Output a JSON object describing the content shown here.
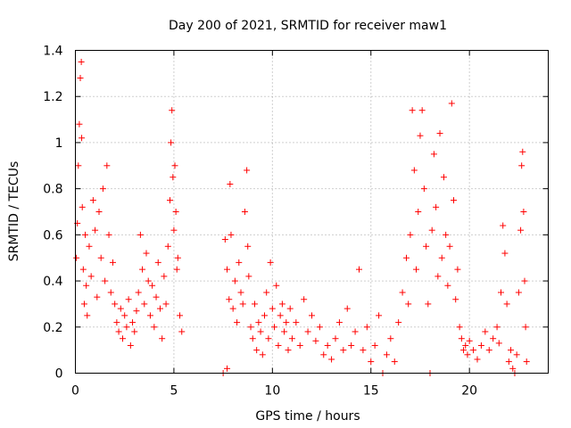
{
  "chart_data": {
    "type": "scatter",
    "title": "Day 200 of 2021, SRMTID for receiver maw1",
    "xlabel": "GPS time / hours",
    "ylabel": "SRMTID / TECUs",
    "xlim": [
      0,
      24
    ],
    "ylim": [
      0,
      1.4
    ],
    "xticks": [
      0,
      5,
      10,
      15,
      20
    ],
    "xtick_labels": [
      "0",
      "5",
      "10",
      "15",
      "20"
    ],
    "yticks": [
      0,
      0.2,
      0.4,
      0.6,
      0.8,
      1.0,
      1.2,
      1.4
    ],
    "ytick_labels": [
      "0",
      "0.2",
      "0.4",
      "0.6",
      "0.8",
      "1",
      "1.2",
      "1.4"
    ],
    "grid": true,
    "marker": "plus",
    "color": "#ff0000",
    "series": [
      {
        "name": "maw1",
        "points": [
          [
            0.05,
            0.5
          ],
          [
            0.1,
            0.65
          ],
          [
            0.15,
            0.9
          ],
          [
            0.2,
            1.08
          ],
          [
            0.25,
            1.28
          ],
          [
            0.3,
            1.35
          ],
          [
            0.32,
            1.02
          ],
          [
            0.35,
            0.72
          ],
          [
            0.4,
            0.45
          ],
          [
            0.45,
            0.3
          ],
          [
            0.5,
            0.6
          ],
          [
            0.55,
            0.38
          ],
          [
            0.6,
            0.25
          ],
          [
            0.7,
            0.55
          ],
          [
            0.8,
            0.42
          ],
          [
            0.9,
            0.75
          ],
          [
            1.0,
            0.62
          ],
          [
            1.1,
            0.33
          ],
          [
            1.2,
            0.7
          ],
          [
            1.3,
            0.5
          ],
          [
            1.4,
            0.8
          ],
          [
            1.5,
            0.4
          ],
          [
            1.6,
            0.9
          ],
          [
            1.7,
            0.6
          ],
          [
            1.8,
            0.35
          ],
          [
            1.9,
            0.48
          ],
          [
            2.0,
            0.3
          ],
          [
            2.1,
            0.22
          ],
          [
            2.2,
            0.18
          ],
          [
            2.3,
            0.28
          ],
          [
            2.4,
            0.15
          ],
          [
            2.5,
            0.25
          ],
          [
            2.6,
            0.2
          ],
          [
            2.7,
            0.32
          ],
          [
            2.8,
            0.12
          ],
          [
            2.9,
            0.22
          ],
          [
            3.0,
            0.18
          ],
          [
            3.1,
            0.27
          ],
          [
            3.2,
            0.35
          ],
          [
            3.3,
            0.6
          ],
          [
            3.4,
            0.45
          ],
          [
            3.5,
            0.3
          ],
          [
            3.6,
            0.52
          ],
          [
            3.7,
            0.4
          ],
          [
            3.8,
            0.25
          ],
          [
            3.9,
            0.38
          ],
          [
            4.0,
            0.2
          ],
          [
            4.1,
            0.33
          ],
          [
            4.2,
            0.48
          ],
          [
            4.3,
            0.28
          ],
          [
            4.4,
            0.15
          ],
          [
            4.5,
            0.42
          ],
          [
            4.6,
            0.3
          ],
          [
            4.7,
            0.55
          ],
          [
            4.8,
            0.75
          ],
          [
            4.85,
            1.0
          ],
          [
            4.9,
            1.14
          ],
          [
            4.95,
            0.85
          ],
          [
            5.0,
            0.62
          ],
          [
            5.05,
            0.9
          ],
          [
            5.1,
            0.7
          ],
          [
            5.15,
            0.45
          ],
          [
            5.2,
            0.5
          ],
          [
            5.3,
            0.25
          ],
          [
            5.4,
            0.18
          ],
          [
            7.5,
            0.0
          ],
          [
            7.7,
            0.02
          ],
          [
            7.6,
            0.58
          ],
          [
            7.7,
            0.45
          ],
          [
            7.8,
            0.32
          ],
          [
            7.85,
            0.82
          ],
          [
            7.9,
            0.6
          ],
          [
            8.0,
            0.28
          ],
          [
            8.1,
            0.4
          ],
          [
            8.2,
            0.22
          ],
          [
            8.3,
            0.48
          ],
          [
            8.4,
            0.35
          ],
          [
            8.5,
            0.3
          ],
          [
            8.6,
            0.7
          ],
          [
            8.7,
            0.88
          ],
          [
            8.75,
            0.55
          ],
          [
            8.8,
            0.42
          ],
          [
            8.9,
            0.2
          ],
          [
            9.0,
            0.15
          ],
          [
            9.1,
            0.3
          ],
          [
            9.2,
            0.1
          ],
          [
            9.3,
            0.22
          ],
          [
            9.4,
            0.18
          ],
          [
            9.5,
            0.08
          ],
          [
            9.6,
            0.25
          ],
          [
            9.7,
            0.35
          ],
          [
            9.8,
            0.15
          ],
          [
            9.9,
            0.48
          ],
          [
            10.0,
            0.28
          ],
          [
            10.1,
            0.2
          ],
          [
            10.2,
            0.38
          ],
          [
            10.3,
            0.12
          ],
          [
            10.4,
            0.25
          ],
          [
            10.5,
            0.3
          ],
          [
            10.6,
            0.18
          ],
          [
            10.7,
            0.22
          ],
          [
            10.8,
            0.1
          ],
          [
            10.9,
            0.28
          ],
          [
            11.0,
            0.15
          ],
          [
            11.2,
            0.22
          ],
          [
            11.4,
            0.12
          ],
          [
            11.6,
            0.32
          ],
          [
            11.8,
            0.18
          ],
          [
            12.0,
            0.25
          ],
          [
            12.2,
            0.14
          ],
          [
            12.4,
            0.2
          ],
          [
            12.6,
            0.08
          ],
          [
            12.8,
            0.12
          ],
          [
            13.0,
            0.06
          ],
          [
            13.2,
            0.15
          ],
          [
            13.4,
            0.22
          ],
          [
            13.6,
            0.1
          ],
          [
            13.8,
            0.28
          ],
          [
            14.0,
            0.12
          ],
          [
            14.2,
            0.18
          ],
          [
            14.4,
            0.45
          ],
          [
            14.6,
            0.1
          ],
          [
            14.8,
            0.2
          ],
          [
            15.0,
            0.05
          ],
          [
            15.2,
            0.12
          ],
          [
            15.4,
            0.25
          ],
          [
            15.6,
            0.0
          ],
          [
            15.8,
            0.08
          ],
          [
            16.0,
            0.15
          ],
          [
            16.2,
            0.05
          ],
          [
            16.4,
            0.22
          ],
          [
            16.6,
            0.35
          ],
          [
            16.8,
            0.5
          ],
          [
            16.9,
            0.3
          ],
          [
            17.0,
            0.6
          ],
          [
            17.1,
            1.14
          ],
          [
            17.2,
            0.88
          ],
          [
            17.3,
            0.45
          ],
          [
            17.4,
            0.7
          ],
          [
            17.5,
            1.03
          ],
          [
            17.6,
            1.14
          ],
          [
            17.7,
            0.8
          ],
          [
            17.8,
            0.55
          ],
          [
            17.9,
            0.3
          ],
          [
            18.0,
            0.0
          ],
          [
            18.1,
            0.62
          ],
          [
            18.2,
            0.95
          ],
          [
            18.3,
            0.72
          ],
          [
            18.4,
            0.42
          ],
          [
            18.5,
            1.04
          ],
          [
            18.6,
            0.5
          ],
          [
            18.7,
            0.85
          ],
          [
            18.8,
            0.6
          ],
          [
            18.9,
            0.38
          ],
          [
            19.0,
            0.55
          ],
          [
            19.1,
            1.17
          ],
          [
            19.2,
            0.75
          ],
          [
            19.3,
            0.32
          ],
          [
            19.4,
            0.45
          ],
          [
            19.5,
            0.2
          ],
          [
            19.6,
            0.15
          ],
          [
            19.7,
            0.1
          ],
          [
            19.8,
            0.12
          ],
          [
            19.9,
            0.08
          ],
          [
            20.0,
            0.14
          ],
          [
            20.2,
            0.1
          ],
          [
            20.4,
            0.06
          ],
          [
            20.6,
            0.12
          ],
          [
            20.8,
            0.18
          ],
          [
            21.0,
            0.1
          ],
          [
            21.2,
            0.15
          ],
          [
            21.4,
            0.2
          ],
          [
            21.5,
            0.13
          ],
          [
            21.6,
            0.35
          ],
          [
            21.7,
            0.64
          ],
          [
            21.8,
            0.52
          ],
          [
            21.9,
            0.3
          ],
          [
            22.0,
            0.05
          ],
          [
            22.1,
            0.1
          ],
          [
            22.2,
            0.02
          ],
          [
            22.3,
            0.0
          ],
          [
            22.4,
            0.08
          ],
          [
            22.5,
            0.35
          ],
          [
            22.6,
            0.62
          ],
          [
            22.65,
            0.9
          ],
          [
            22.7,
            0.96
          ],
          [
            22.75,
            0.7
          ],
          [
            22.8,
            0.4
          ],
          [
            22.85,
            0.2
          ],
          [
            22.9,
            0.05
          ]
        ]
      }
    ]
  }
}
